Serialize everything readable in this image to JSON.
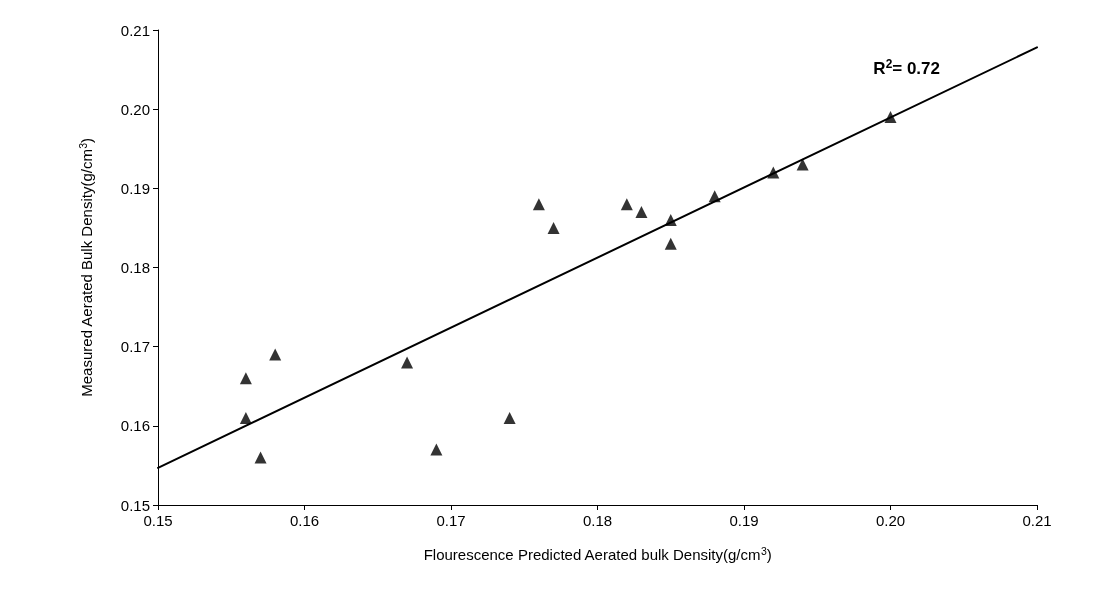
{
  "chart_data": {
    "type": "scatter",
    "xlabel": "Flourescence Predicted Aerated bulk Density(g/cm$^{3}$)",
    "ylabel": "Measured Aerated Bulk Density(g/cm$^{3}$)",
    "annotations": [
      "R$^{2}$= 0.72"
    ],
    "xlim": [
      0.15,
      0.21
    ],
    "xticks": [
      0.15,
      0.16,
      0.17,
      0.18,
      0.19,
      {
        "value": 0.2,
        "label": "0.20"
      },
      0.21
    ],
    "ylim": [
      0.15,
      0.21
    ],
    "yticks": [
      0.15,
      0.16,
      0.17,
      0.18,
      0.19,
      {
        "value": 0.2,
        "label": "0.20"
      },
      0.21
    ],
    "grid": false,
    "marker": "triangle",
    "series": [
      {
        "color": "#000000",
        "x": [
          0.156,
          0.156,
          0.157,
          0.158,
          0.167,
          0.169,
          0.174,
          0.176,
          0.177,
          0.182,
          0.183,
          0.185,
          0.185,
          0.188,
          0.192,
          0.194,
          0.2
        ],
        "values": [
          0.166,
          0.161,
          0.156,
          0.169,
          0.168,
          0.157,
          0.161,
          0.188,
          0.185,
          0.188,
          0.187,
          0.186,
          0.183,
          0.189,
          0.192,
          0.193,
          0.199
        ]
      },
      {
        "type": "line",
        "color": "#000000",
        "line_style": "solid",
        "marker": "none",
        "x": [
          0.15,
          0.21
        ],
        "values": [
          0.1547,
          0.2078
        ]
      }
    ]
  }
}
